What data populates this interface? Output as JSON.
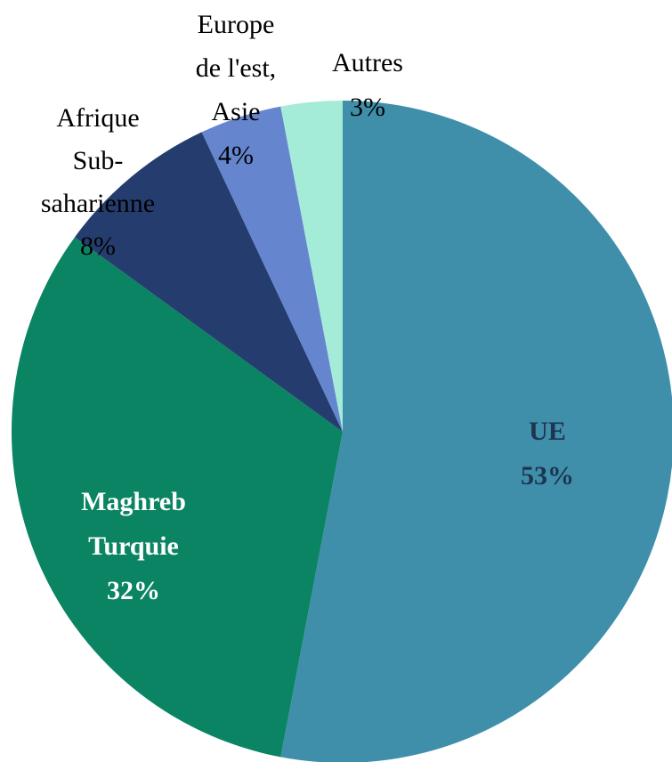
{
  "chart_data": {
    "type": "pie",
    "categories": [
      [
        "UE"
      ],
      [
        "Maghreb",
        "Turquie"
      ],
      [
        "Afrique",
        "Sub-",
        "saharienne"
      ],
      [
        "Europe",
        "de l'est,",
        "Asie"
      ],
      [
        "Autres"
      ]
    ],
    "values": [
      53,
      32,
      8,
      4,
      3
    ],
    "value_labels": [
      "53%",
      "32%",
      "8%",
      "4%",
      "3%"
    ],
    "colors": [
      "#3f8faa",
      "#0a8463",
      "#253d6e",
      "#6585cf",
      "#a5ecd8"
    ]
  }
}
